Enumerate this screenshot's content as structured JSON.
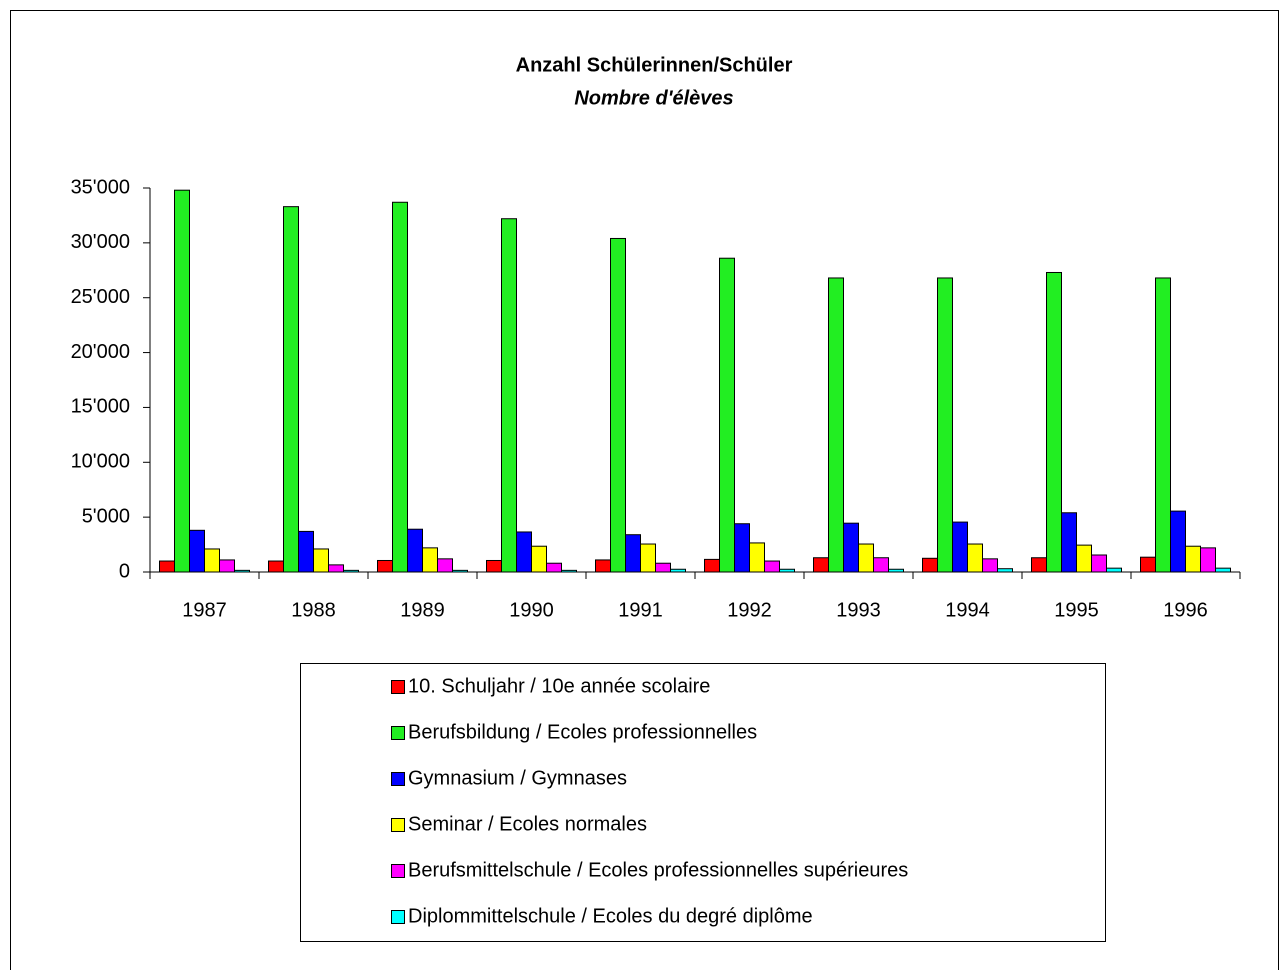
{
  "chart_data": {
    "type": "bar",
    "title": "Anzahl Schülerinnen/Schüler",
    "subtitle": "Nombre d'élèves",
    "categories": [
      "1987",
      "1988",
      "1989",
      "1990",
      "1991",
      "1992",
      "1993",
      "1994",
      "1995",
      "1996"
    ],
    "series": [
      {
        "name": "10. Schuljahr / 10e année scolaire",
        "color": "#ff0000",
        "values": [
          1000,
          1000,
          1050,
          1050,
          1100,
          1150,
          1300,
          1250,
          1300,
          1350
        ]
      },
      {
        "name": "Berufsbildung / Ecoles professionnelles",
        "color": "#22ee22",
        "values": [
          34800,
          33300,
          33700,
          32200,
          30400,
          28600,
          26800,
          26800,
          27300,
          26800
        ]
      },
      {
        "name": "Gymnasium / Gymnases",
        "color": "#0000ff",
        "values": [
          3800,
          3700,
          3900,
          3650,
          3400,
          4400,
          4450,
          4550,
          5400,
          5550
        ]
      },
      {
        "name": "Seminar / Ecoles normales",
        "color": "#ffff00",
        "values": [
          2100,
          2100,
          2200,
          2350,
          2550,
          2650,
          2550,
          2550,
          2450,
          2350
        ]
      },
      {
        "name": "Berufsmittelschule / Ecoles professionnelles supérieures",
        "color": "#ff00ff",
        "values": [
          1100,
          650,
          1200,
          800,
          800,
          1000,
          1300,
          1200,
          1550,
          2200
        ]
      },
      {
        "name": "Diplommittelschule / Ecoles du degré diplôme",
        "color": "#00ffff",
        "values": [
          150,
          150,
          150,
          150,
          250,
          250,
          250,
          300,
          350,
          350
        ]
      }
    ],
    "ylim": [
      0,
      35000
    ],
    "yticks": [
      0,
      {
        "value": 5000,
        "label": "5'000"
      },
      {
        "value": 10000,
        "label": "10'000"
      },
      {
        "value": 15000,
        "label": "15'000"
      },
      {
        "value": 20000,
        "label": "20'000"
      },
      {
        "value": 25000,
        "label": "25'000"
      },
      {
        "value": 30000,
        "label": "30'000"
      },
      {
        "value": 35000,
        "label": "35'000"
      }
    ],
    "grid": false,
    "legend": "bottom"
  }
}
